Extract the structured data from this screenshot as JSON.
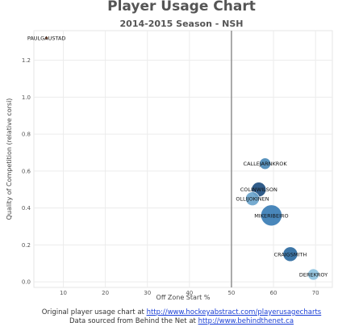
{
  "chart_data": {
    "type": "scatter",
    "title": "Player Usage Chart",
    "subtitle": "2014-2015 Season - NSH",
    "xlabel": "Off Zone Start %",
    "ylabel": "Quality of Competition (relative corsi)",
    "xlim": [
      3,
      74
    ],
    "ylim": [
      -0.03,
      1.36
    ],
    "x_ticks": [
      10,
      20,
      30,
      40,
      50,
      60,
      70
    ],
    "y_ticks": [
      0.0,
      0.2,
      0.4,
      0.6,
      0.8,
      1.0,
      1.2
    ],
    "reference_line_x": 50,
    "grid": true,
    "points": [
      {
        "label": "PAULGAUSTAD",
        "x": 6,
        "y": 1.32,
        "size": 2,
        "color": "#8b4a2b"
      },
      {
        "label": "CALLEJARNKROK",
        "x": 58,
        "y": 0.64,
        "size": 7,
        "color": "#4b8ab8"
      },
      {
        "label": "COLINWILSON",
        "x": 56.5,
        "y": 0.5,
        "size": 9,
        "color": "#1f4f80"
      },
      {
        "label": "OLLIJOKINEN",
        "x": 55,
        "y": 0.45,
        "size": 8.5,
        "color": "#6aa4cc"
      },
      {
        "label": "MIKERIBEIRO",
        "x": 59.5,
        "y": 0.36,
        "size": 13,
        "color": "#3a7db5"
      },
      {
        "label": "CRAIGSMITH",
        "x": 64,
        "y": 0.15,
        "size": 9,
        "color": "#2c6aa0"
      },
      {
        "label": "DEREKROY",
        "x": 69.5,
        "y": 0.04,
        "size": 7,
        "color": "#8fc3e0"
      }
    ]
  },
  "footer": {
    "line1_prefix": "Original player usage chart at ",
    "line1_link": "http://www.hockeyabstract.com/playerusagecharts",
    "line2_prefix": "Data sourced from Behind the Net at ",
    "line2_link": "http://www.behindthenet.ca"
  }
}
